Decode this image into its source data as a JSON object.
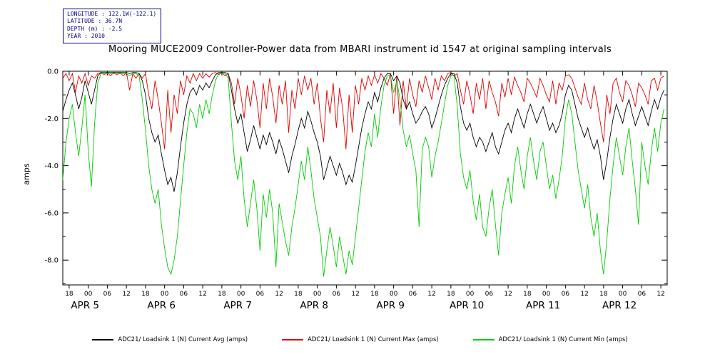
{
  "metadata_box": {
    "lines": [
      "LONGITUDE : 122.1W(-122.1)",
      "LATITUDE : 36.7N",
      "DEPTH (m) : -2.5",
      "YEAR : 2010"
    ]
  },
  "chart_data": {
    "type": "line",
    "title": "Mooring MUCE2009 Controller-Power data from MBARI instrument id 1547 at original sampling intervals",
    "xlabel": "",
    "ylabel": "amps",
    "ylim": [
      -9.05,
      0
    ],
    "grid": false,
    "legend_position": "bottom",
    "x_unit": "hours since APR 4 17:00 2010",
    "x_step_hours": 1,
    "x_total_hours": 190,
    "x_axis": {
      "tick_start_hour": 2,
      "tick_step_hours": 6,
      "tick_labels": [
        "18",
        "00",
        "06",
        "12",
        "18",
        "00",
        "06",
        "12",
        "18",
        "00",
        "06",
        "12",
        "18",
        "00",
        "06",
        "12",
        "18",
        "00",
        "06",
        "12",
        "18",
        "00",
        "06",
        "12",
        "18",
        "00",
        "06",
        "12",
        "18",
        "00",
        "06",
        "12"
      ],
      "day_labels": [
        {
          "label": "APR 5",
          "hour": 7
        },
        {
          "label": "APR 6",
          "hour": 31
        },
        {
          "label": "APR 7",
          "hour": 55
        },
        {
          "label": "APR 8",
          "hour": 79
        },
        {
          "label": "APR 9",
          "hour": 103
        },
        {
          "label": "APR 10",
          "hour": 127
        },
        {
          "label": "APR 11",
          "hour": 151
        },
        {
          "label": "APR 12",
          "hour": 175
        }
      ]
    },
    "y_ticks": [
      {
        "value": 0,
        "label": "0.0"
      },
      {
        "value": -2,
        "label": "-2.0"
      },
      {
        "value": -4,
        "label": "-4.0"
      },
      {
        "value": -6,
        "label": "-6.0"
      },
      {
        "value": -8,
        "label": "-8.0"
      }
    ],
    "series": [
      {
        "id": "avg",
        "name": "ADC21/ Loadsink 1 (N) Current Avg (amps)",
        "color": "#000000",
        "values": [
          -1.7,
          -1.2,
          -0.8,
          -0.5,
          -1.0,
          -1.6,
          -1.1,
          -0.4,
          -0.9,
          -1.4,
          -0.8,
          -0.2,
          -0.05,
          -0.05,
          -0.05,
          -0.05,
          -0.05,
          -0.05,
          -0.05,
          -0.05,
          -0.05,
          -0.1,
          -0.05,
          -0.05,
          -0.1,
          -0.4,
          -1.0,
          -2.0,
          -2.6,
          -3.0,
          -2.7,
          -3.5,
          -4.2,
          -4.8,
          -4.5,
          -5.1,
          -4.3,
          -3.2,
          -2.2,
          -1.4,
          -0.9,
          -0.7,
          -1.0,
          -0.6,
          -0.8,
          -0.5,
          -0.7,
          -0.4,
          -0.15,
          -0.05,
          -0.05,
          -0.05,
          -0.1,
          -0.8,
          -1.6,
          -2.2,
          -1.8,
          -2.6,
          -3.4,
          -2.9,
          -2.3,
          -2.8,
          -3.3,
          -2.7,
          -3.1,
          -2.6,
          -3.0,
          -3.5,
          -2.9,
          -3.3,
          -3.8,
          -4.3,
          -3.6,
          -3.1,
          -2.5,
          -2.0,
          -2.4,
          -1.7,
          -2.1,
          -2.6,
          -3.0,
          -3.6,
          -4.6,
          -4.1,
          -3.6,
          -4.0,
          -4.4,
          -3.9,
          -4.3,
          -4.8,
          -4.4,
          -4.7,
          -4.0,
          -3.2,
          -2.4,
          -1.8,
          -1.3,
          -1.6,
          -0.9,
          -1.3,
          -0.7,
          -0.3,
          -0.1,
          -0.1,
          -0.4,
          -0.2,
          -0.5,
          -1.2,
          -1.6,
          -1.3,
          -1.8,
          -2.2,
          -2.0,
          -1.7,
          -1.5,
          -1.8,
          -2.4,
          -2.0,
          -1.5,
          -1.0,
          -0.6,
          -0.3,
          -0.1,
          -0.1,
          -0.5,
          -1.5,
          -2.2,
          -2.5,
          -2.2,
          -2.8,
          -3.2,
          -2.8,
          -3.0,
          -3.4,
          -3.0,
          -2.6,
          -3.2,
          -3.5,
          -3.0,
          -2.5,
          -2.2,
          -2.6,
          -2.0,
          -1.6,
          -2.0,
          -2.4,
          -1.8,
          -1.4,
          -1.8,
          -2.2,
          -1.8,
          -1.5,
          -2.0,
          -2.5,
          -2.2,
          -2.6,
          -2.3,
          -1.8,
          -1.0,
          -0.6,
          -0.8,
          -1.4,
          -2.0,
          -2.4,
          -2.8,
          -2.4,
          -2.9,
          -3.3,
          -2.9,
          -3.6,
          -4.6,
          -3.8,
          -2.8,
          -2.0,
          -1.4,
          -1.8,
          -2.2,
          -1.6,
          -1.2,
          -1.8,
          -2.3,
          -1.9,
          -1.5,
          -1.9,
          -2.3,
          -1.7,
          -1.2,
          -1.6,
          -1.1,
          -0.8
        ]
      },
      {
        "id": "max",
        "name": "ADC21/ Loadsink 1 (N) Current Max (amps)",
        "color": "#dd0000",
        "values": [
          -0.3,
          -0.1,
          -0.4,
          -0.1,
          -0.9,
          -0.2,
          -0.5,
          -0.1,
          -0.6,
          -0.2,
          -0.3,
          -0.1,
          -0.05,
          -0.15,
          -0.05,
          -0.2,
          -0.05,
          -0.15,
          -0.05,
          -0.2,
          -0.05,
          -0.8,
          -0.1,
          -0.3,
          -0.1,
          -0.3,
          -0.1,
          -1.0,
          -1.6,
          -0.4,
          -1.2,
          -2.2,
          -3.3,
          -0.8,
          -2.6,
          -1.0,
          -1.8,
          -0.4,
          -1.0,
          -0.2,
          -0.5,
          -0.1,
          -0.4,
          -0.1,
          -0.3,
          -0.1,
          -0.25,
          -0.1,
          -0.05,
          -0.15,
          -0.05,
          -0.2,
          -0.1,
          -0.5,
          -1.4,
          -0.3,
          -1.0,
          -2.0,
          -0.6,
          -1.5,
          -0.4,
          -1.2,
          -2.4,
          -0.5,
          -1.6,
          -0.3,
          -1.1,
          -2.2,
          -0.6,
          -1.4,
          -0.4,
          -2.6,
          -0.8,
          -1.6,
          -0.3,
          -1.0,
          -0.2,
          -0.8,
          -0.3,
          -1.4,
          -0.5,
          -2.0,
          -3.0,
          -0.8,
          -1.8,
          -0.5,
          -2.4,
          -0.7,
          -1.6,
          -3.3,
          -1.0,
          -2.6,
          -0.6,
          -1.4,
          -0.3,
          -0.8,
          -0.2,
          -0.6,
          -0.15,
          -0.5,
          -0.1,
          -0.3,
          -0.6,
          -0.1,
          -1.8,
          -0.2,
          -2.3,
          -0.4,
          -1.6,
          -0.3,
          -1.0,
          -1.5,
          -0.4,
          -0.9,
          -0.2,
          -0.7,
          -1.2,
          -0.3,
          -0.8,
          -0.2,
          -0.4,
          -0.1,
          -0.05,
          -0.2,
          -0.1,
          -0.8,
          -1.4,
          -0.4,
          -1.0,
          -1.8,
          -0.5,
          -1.2,
          -0.3,
          -1.6,
          -0.4,
          -0.9,
          -1.3,
          -1.9,
          -0.5,
          -1.1,
          -0.3,
          -1.0,
          -0.25,
          -0.6,
          -0.9,
          -1.3,
          -0.3,
          -0.5,
          -0.8,
          -1.1,
          -0.3,
          -0.6,
          -1.0,
          -1.3,
          -0.4,
          -1.4,
          -0.5,
          -0.8,
          -0.2,
          -0.15,
          -0.3,
          -0.7,
          -1.1,
          -1.4,
          -0.5,
          -1.2,
          -1.6,
          -0.6,
          -1.3,
          -2.2,
          -3.0,
          -1.0,
          -1.8,
          -0.5,
          -0.3,
          -0.9,
          -1.3,
          -0.4,
          -0.6,
          -1.0,
          -1.5,
          -0.5,
          -0.7,
          -1.0,
          -1.4,
          -0.4,
          -0.3,
          -0.8,
          -0.3,
          -0.2
        ]
      },
      {
        "id": "min",
        "name": "ADC21/ Loadsink 1 (N) Current Min (amps)",
        "color": "#00cc00",
        "values": [
          -4.6,
          -3.0,
          -2.0,
          -1.4,
          -2.6,
          -3.6,
          -2.4,
          -1.0,
          -3.4,
          -4.9,
          -2.2,
          -0.5,
          -0.1,
          -0.1,
          -0.1,
          -0.1,
          -0.1,
          -0.1,
          -0.1,
          -0.1,
          -0.1,
          -0.2,
          -0.1,
          -0.1,
          -0.2,
          -1.2,
          -2.5,
          -4.0,
          -5.0,
          -5.6,
          -5.0,
          -6.5,
          -7.5,
          -8.3,
          -8.6,
          -8.0,
          -7.0,
          -5.5,
          -4.0,
          -2.6,
          -1.6,
          -1.8,
          -2.4,
          -1.4,
          -2.0,
          -1.2,
          -1.8,
          -1.0,
          -0.4,
          -0.1,
          -0.1,
          -0.1,
          -0.3,
          -2.2,
          -3.8,
          -4.6,
          -3.6,
          -5.4,
          -6.6,
          -5.6,
          -4.6,
          -5.8,
          -7.6,
          -5.2,
          -6.2,
          -5.0,
          -6.0,
          -8.3,
          -5.6,
          -6.4,
          -7.2,
          -7.8,
          -6.6,
          -5.8,
          -4.8,
          -3.8,
          -4.6,
          -3.2,
          -4.2,
          -5.4,
          -6.2,
          -7.0,
          -8.7,
          -7.6,
          -6.6,
          -7.4,
          -8.3,
          -7.0,
          -7.8,
          -8.6,
          -7.6,
          -8.2,
          -7.0,
          -5.8,
          -4.6,
          -3.4,
          -2.6,
          -3.2,
          -1.8,
          -2.8,
          -1.5,
          -0.6,
          -0.2,
          -0.2,
          -0.9,
          -0.4,
          -1.2,
          -2.5,
          -3.2,
          -2.7,
          -3.5,
          -4.2,
          -6.6,
          -3.3,
          -2.8,
          -3.2,
          -4.5,
          -3.6,
          -3.0,
          -2.2,
          -1.4,
          -0.6,
          -0.2,
          -0.2,
          -1.5,
          -3.5,
          -4.5,
          -5.0,
          -4.2,
          -5.5,
          -6.3,
          -5.2,
          -6.6,
          -7.0,
          -5.8,
          -5.0,
          -6.5,
          -7.8,
          -6.0,
          -5.2,
          -4.5,
          -5.6,
          -4.0,
          -3.2,
          -4.2,
          -5.0,
          -3.6,
          -2.8,
          -3.8,
          -4.6,
          -3.4,
          -3.0,
          -4.0,
          -5.0,
          -4.4,
          -5.4,
          -4.6,
          -3.6,
          -2.0,
          -1.2,
          -1.8,
          -3.0,
          -4.2,
          -5.0,
          -5.8,
          -4.8,
          -6.2,
          -7.0,
          -6.0,
          -7.6,
          -8.6,
          -7.2,
          -5.4,
          -4.0,
          -2.8,
          -3.6,
          -4.4,
          -3.2,
          -2.4,
          -3.8,
          -5.0,
          -6.5,
          -3.0,
          -4.0,
          -4.8,
          -3.4,
          -2.4,
          -3.4,
          -2.2,
          -1.6
        ]
      }
    ]
  }
}
